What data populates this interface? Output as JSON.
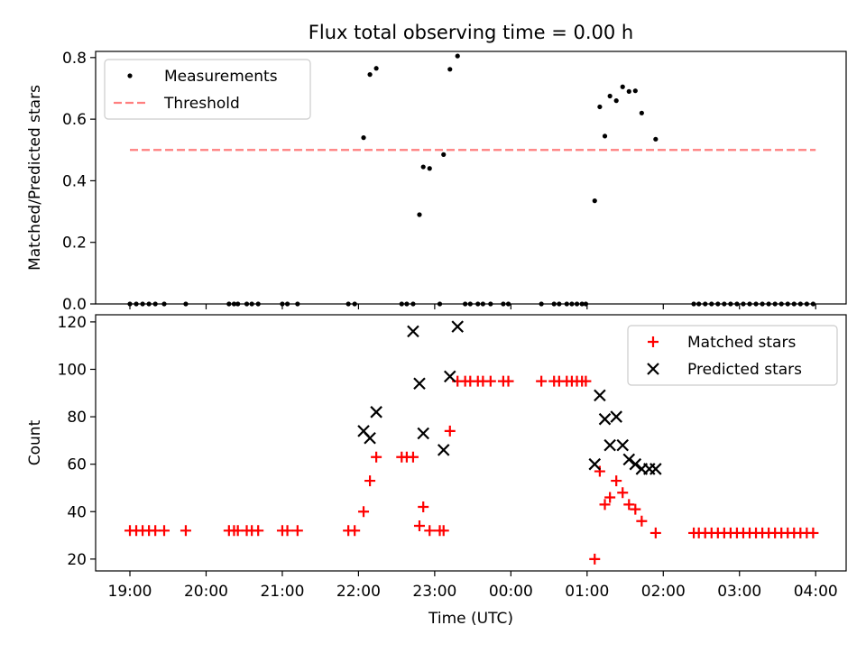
{
  "figure": {
    "title": "Flux total observing time = 0.00 h"
  },
  "chart_data": [
    {
      "type": "scatter",
      "ylabel": "Matched/Predicted stars",
      "ylim": [
        0,
        0.82
      ],
      "yticks": [
        0,
        0.2,
        0.4,
        0.6,
        0.8
      ],
      "ytick_labels": [
        "0.0",
        "0.2",
        "0.4",
        "0.6",
        "0.8"
      ],
      "xlim_hours": [
        18.55,
        28.4
      ],
      "legend": {
        "placement": "top-left",
        "entries": [
          "Measurements",
          "Threshold"
        ]
      },
      "series": [
        {
          "name": "Measurements",
          "kind": "points",
          "color": "#000000",
          "x": [
            "19:00",
            "19:05",
            "19:10",
            "19:15",
            "19:20",
            "19:27",
            "19:44",
            "20:18",
            "20:22",
            "20:25",
            "20:32",
            "20:36",
            "20:41",
            "21:00",
            "21:04",
            "21:12",
            "21:52",
            "21:57",
            "22:04",
            "22:09",
            "22:14",
            "22:34",
            "22:38",
            "22:43",
            "22:48",
            "22:51",
            "22:56",
            "23:04",
            "23:07",
            "23:12",
            "23:18",
            "23:24",
            "23:28",
            "23:34",
            "23:38",
            "23:44",
            "23:54",
            "23:58",
            "00:24",
            "00:34",
            "00:38",
            "00:44",
            "00:48",
            "00:52",
            "00:56",
            "00:59",
            "01:06",
            "01:10",
            "01:14",
            "01:18",
            "01:23",
            "01:28",
            "01:33",
            "01:38",
            "01:43",
            "01:54",
            "02:24",
            "02:28",
            "02:33",
            "02:38",
            "02:43",
            "02:48",
            "02:53",
            "02:58",
            "03:03",
            "03:08",
            "03:13",
            "03:18",
            "03:23",
            "03:28",
            "03:33",
            "03:38",
            "03:43",
            "03:48",
            "03:53",
            "03:58"
          ],
          "y": [
            0,
            0,
            0,
            0,
            0,
            0,
            0,
            0,
            0,
            0,
            0,
            0,
            0,
            0,
            0,
            0,
            0,
            0,
            0.54,
            0.745,
            0.765,
            0,
            0,
            0,
            0.29,
            0.445,
            0.44,
            0,
            0.485,
            0.762,
            0.805,
            0,
            0,
            0,
            0,
            0,
            0,
            0,
            0,
            0,
            0,
            0,
            0,
            0,
            0,
            0,
            0.335,
            0.64,
            0.545,
            0.675,
            0.66,
            0.705,
            0.69,
            0.692,
            0.62,
            0.535,
            0,
            0,
            0,
            0,
            0,
            0,
            0,
            0,
            0,
            0,
            0,
            0,
            0,
            0,
            0,
            0,
            0,
            0,
            0,
            0
          ]
        },
        {
          "name": "Threshold",
          "kind": "dashed-line",
          "color": "#ff7f7f",
          "x": [
            "19:00",
            "04:00"
          ],
          "y": [
            0.5,
            0.5
          ]
        }
      ]
    },
    {
      "type": "scatter",
      "xlabel": "Time (UTC)",
      "ylabel": "Count",
      "ylim": [
        15,
        123
      ],
      "yticks": [
        20,
        40,
        60,
        80,
        100,
        120
      ],
      "ytick_labels": [
        "20",
        "40",
        "60",
        "80",
        "100",
        "120"
      ],
      "xlim_hours": [
        18.55,
        28.4
      ],
      "xticks": [
        "19:00",
        "20:00",
        "21:00",
        "22:00",
        "23:00",
        "00:00",
        "01:00",
        "02:00",
        "03:00",
        "04:00"
      ],
      "legend": {
        "placement": "top-right",
        "entries": [
          "Matched stars",
          "Predicted stars"
        ]
      },
      "series": [
        {
          "name": "Matched stars",
          "marker": "plus",
          "color": "#ff0000",
          "x": [
            "19:00",
            "19:05",
            "19:10",
            "19:15",
            "19:20",
            "19:27",
            "19:44",
            "20:18",
            "20:22",
            "20:25",
            "20:32",
            "20:36",
            "20:41",
            "21:00",
            "21:04",
            "21:12",
            "21:52",
            "21:57",
            "22:04",
            "22:09",
            "22:14",
            "22:34",
            "22:38",
            "22:43",
            "22:48",
            "22:51",
            "22:56",
            "23:04",
            "23:07",
            "23:12",
            "23:18",
            "23:24",
            "23:28",
            "23:34",
            "23:38",
            "23:44",
            "23:54",
            "23:58",
            "00:24",
            "00:34",
            "00:38",
            "00:44",
            "00:48",
            "00:52",
            "00:56",
            "00:59",
            "01:06",
            "01:10",
            "01:14",
            "01:18",
            "01:23",
            "01:28",
            "01:33",
            "01:38",
            "01:43",
            "01:54",
            "02:24",
            "02:28",
            "02:33",
            "02:38",
            "02:43",
            "02:48",
            "02:53",
            "02:58",
            "03:03",
            "03:08",
            "03:13",
            "03:18",
            "03:23",
            "03:28",
            "03:33",
            "03:38",
            "03:43",
            "03:48",
            "03:53",
            "03:58"
          ],
          "y": [
            32,
            32,
            32,
            32,
            32,
            32,
            32,
            32,
            32,
            32,
            32,
            32,
            32,
            32,
            32,
            32,
            32,
            32,
            40,
            53,
            63,
            63,
            63,
            63,
            34,
            42,
            32,
            32,
            32,
            74,
            95,
            95,
            95,
            95,
            95,
            95,
            95,
            95,
            95,
            95,
            95,
            95,
            95,
            95,
            95,
            95,
            20,
            57,
            43,
            46,
            53,
            48,
            43,
            41,
            36,
            31,
            31,
            31,
            31,
            31,
            31,
            31,
            31,
            31,
            31,
            31,
            31,
            31,
            31,
            31,
            31,
            31,
            31,
            31,
            31,
            31
          ]
        },
        {
          "name": "Predicted stars",
          "marker": "x",
          "color": "#000000",
          "x": [
            "22:04",
            "22:09",
            "22:14",
            "22:43",
            "22:48",
            "22:51",
            "23:07",
            "23:12",
            "23:18",
            "01:06",
            "01:10",
            "01:14",
            "01:18",
            "01:23",
            "01:28",
            "01:33",
            "01:38",
            "01:43",
            "01:49",
            "01:54"
          ],
          "y": [
            74,
            71,
            82,
            116,
            94,
            73,
            66,
            97,
            118,
            60,
            89,
            79,
            68,
            80,
            68,
            62,
            60,
            58,
            58,
            58
          ]
        }
      ]
    }
  ]
}
